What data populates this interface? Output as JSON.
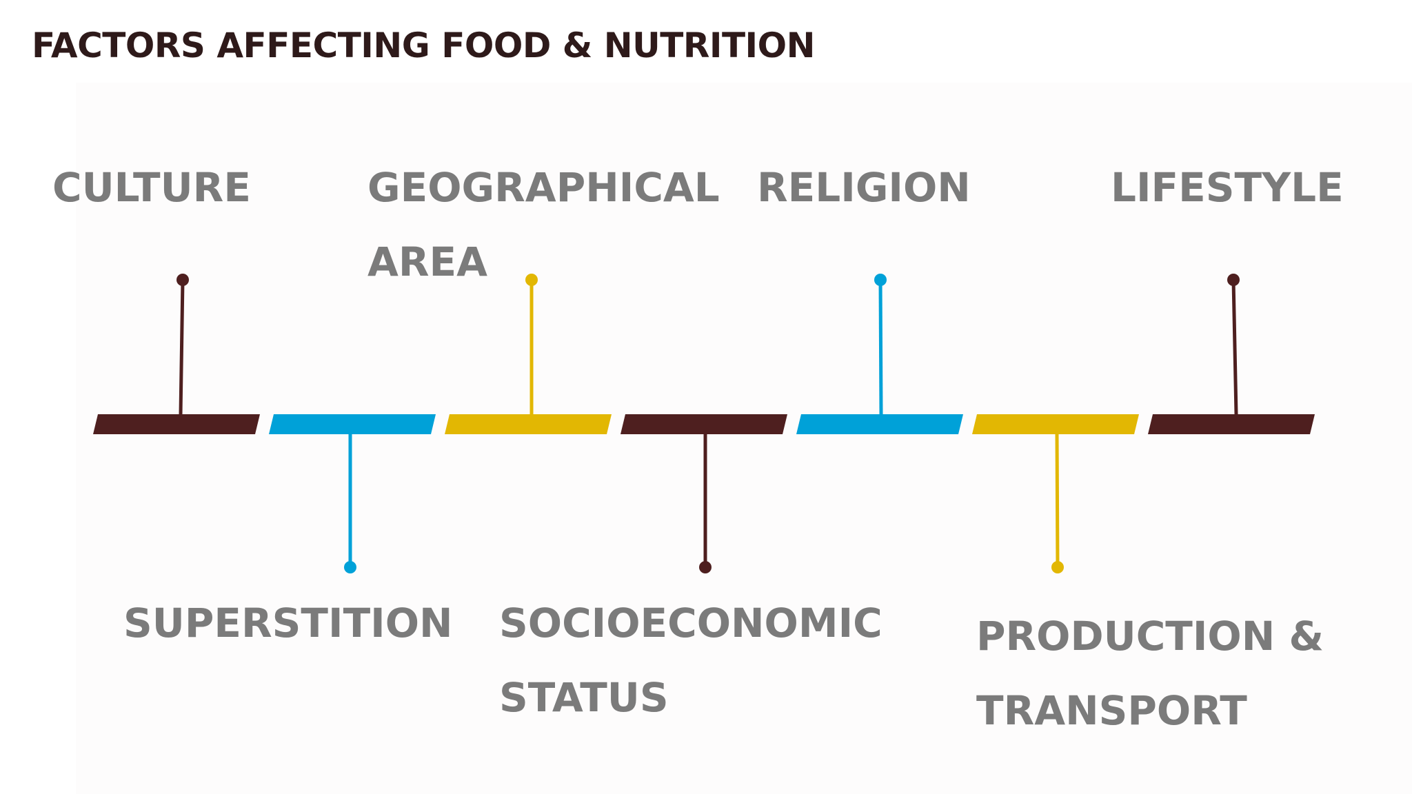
{
  "title": "FACTORS AFFECTING FOOD & NUTRITION",
  "colors": {
    "brown": "#4e1f1f",
    "blue": "#00a1d8",
    "yellow": "#e2b703",
    "label_gray": "#7b7b7b",
    "title": "#2e1a1a"
  },
  "factors": {
    "culture": {
      "lines": [
        "CULTURE"
      ],
      "color": "brown",
      "side": "top"
    },
    "superstition": {
      "lines": [
        "SUPERSTITION"
      ],
      "color": "blue",
      "side": "bottom"
    },
    "geographical_area": {
      "lines": [
        "GEOGRAPHICAL",
        "AREA"
      ],
      "color": "yellow",
      "side": "top"
    },
    "socioeconomic_status": {
      "lines": [
        "SOCIOECONOMIC",
        "STATUS"
      ],
      "color": "brown",
      "side": "bottom"
    },
    "religion": {
      "lines": [
        "RELIGION"
      ],
      "color": "blue",
      "side": "top"
    },
    "production_transport": {
      "lines": [
        "PRODUCTION &",
        "TRANSPORT"
      ],
      "color": "yellow",
      "side": "bottom"
    },
    "lifestyle": {
      "lines": [
        "LIFESTYLE"
      ],
      "color": "brown",
      "side": "top"
    }
  }
}
